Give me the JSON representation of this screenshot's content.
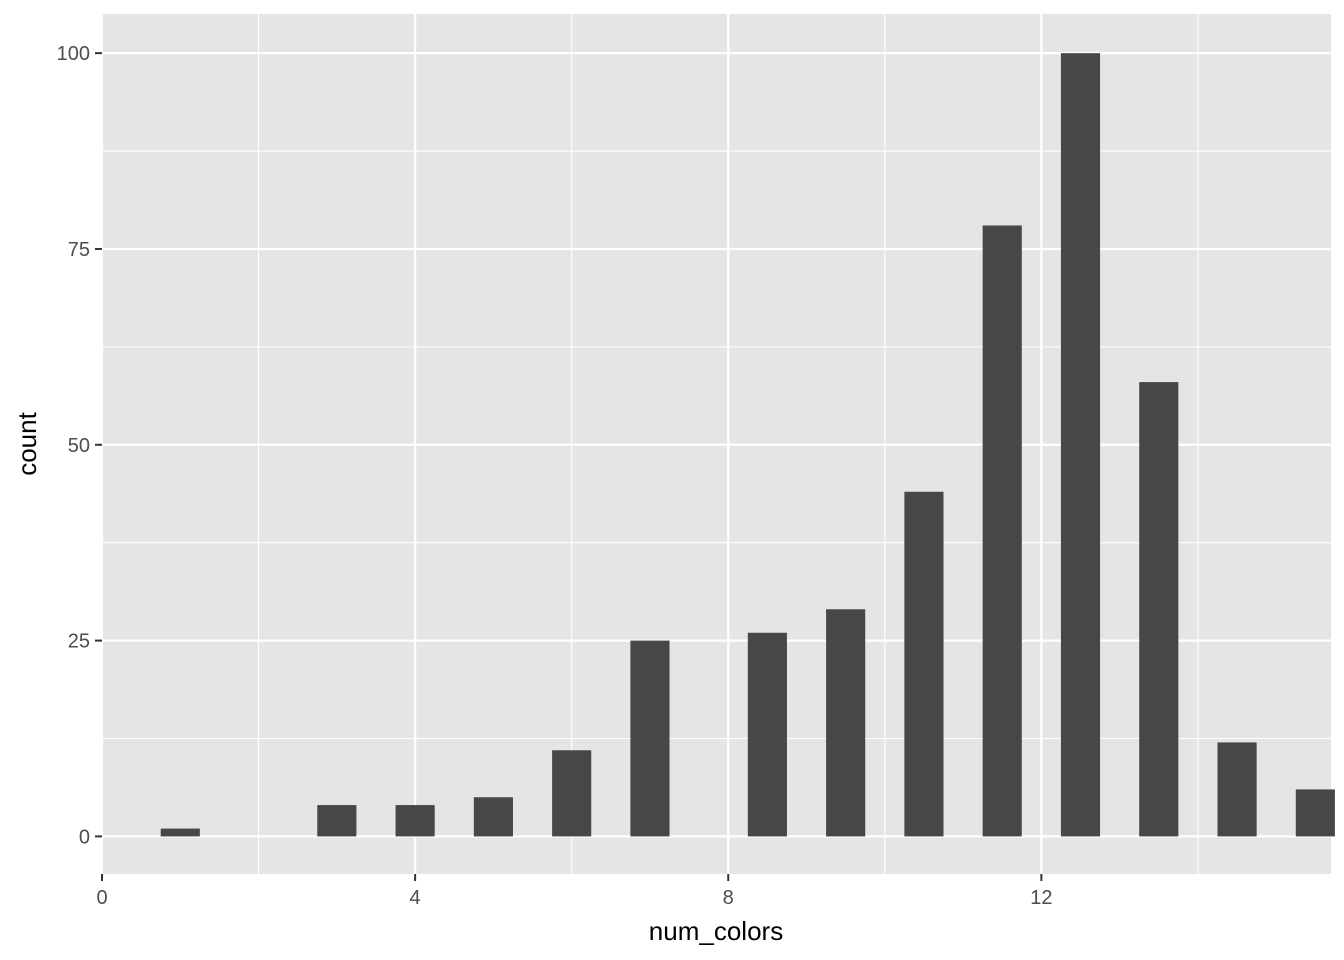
{
  "chart_data": {
    "type": "bar",
    "title": "",
    "xlabel": "num_colors",
    "ylabel": "count",
    "x": [
      1,
      3,
      4,
      5,
      6,
      7,
      8.5,
      9.5,
      10.5,
      11.5,
      12.5,
      13.5,
      14.5,
      15.5
    ],
    "values": [
      1,
      4,
      4,
      5,
      11,
      25,
      26,
      29,
      44,
      78,
      100,
      58,
      12,
      6
    ],
    "bin_width": 0.5,
    "xlim": [
      0,
      15.7
    ],
    "ylim": [
      -4.8,
      105
    ],
    "x_ticks": [
      {
        "value": 0,
        "label": "0"
      },
      {
        "value": 4,
        "label": "4"
      },
      {
        "value": 8,
        "label": "8"
      },
      {
        "value": 12,
        "label": "12"
      }
    ],
    "y_ticks": [
      {
        "value": 0,
        "label": "0"
      },
      {
        "value": 25,
        "label": "25"
      },
      {
        "value": 50,
        "label": "50"
      },
      {
        "value": 75,
        "label": "75"
      },
      {
        "value": 100,
        "label": "100"
      }
    ],
    "x_minor_ticks": [
      2,
      6,
      10,
      14
    ],
    "y_minor_ticks": [
      12.5,
      37.5,
      62.5,
      87.5
    ],
    "grid": true,
    "legend": "none",
    "colors": {
      "panel": "#E5E5E5",
      "grid": "#FFFFFF",
      "bar": "#474747",
      "tick": "#333333"
    }
  }
}
